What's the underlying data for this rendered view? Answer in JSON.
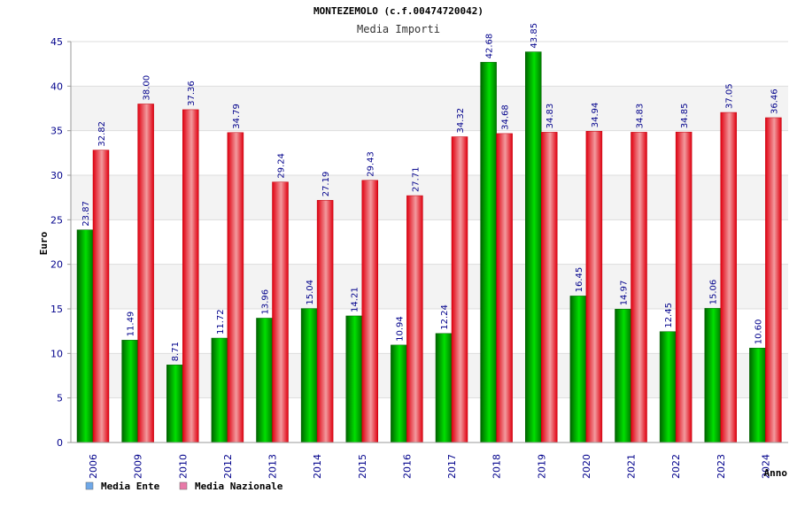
{
  "chart_data": {
    "type": "bar",
    "title": "MONTEZEMOLO (c.f.00474720042)",
    "subtitle": "Media Importi",
    "ylabel": "Euro",
    "xlabel": "Anno",
    "ylim": [
      0,
      45
    ],
    "yticks": [
      0,
      5,
      10,
      15,
      20,
      25,
      30,
      35,
      40,
      45
    ],
    "grid": true,
    "legend_position": "bottom-left",
    "categories": [
      "2006",
      "2009",
      "2010",
      "2012",
      "2013",
      "2014",
      "2015",
      "2016",
      "2017",
      "2018",
      "2019",
      "2020",
      "2021",
      "2022",
      "2023",
      "2024"
    ],
    "series": [
      {
        "name": "Media Ente",
        "color": "#00b000",
        "legend_color": "#6fa8e8",
        "values": [
          23.87,
          11.49,
          8.71,
          11.72,
          13.96,
          15.04,
          14.21,
          10.94,
          12.24,
          42.68,
          43.85,
          16.45,
          14.97,
          12.45,
          15.06,
          10.6
        ],
        "labels": [
          "23.87",
          "11.49",
          "8.71",
          "11.72",
          "13.96",
          "15.04",
          "14.21",
          "10.94",
          "12.24",
          "42.68",
          "43.85",
          "16.45",
          "14.97",
          "12.45",
          "15.06",
          "10.60"
        ]
      },
      {
        "name": "Media Nazionale",
        "color": "#e8101a",
        "legend_color": "#e87aa8",
        "values": [
          32.82,
          38.0,
          37.36,
          34.79,
          29.24,
          27.19,
          29.43,
          27.71,
          34.32,
          34.68,
          34.83,
          34.94,
          34.83,
          34.85,
          37.05,
          36.46
        ],
        "labels": [
          "32.82",
          "38.00",
          "37.36",
          "34.79",
          "29.24",
          "27.19",
          "29.43",
          "27.71",
          "34.32",
          "34.68",
          "34.83",
          "34.94",
          "34.83",
          "34.85",
          "37.05",
          "36.46"
        ]
      }
    ]
  }
}
